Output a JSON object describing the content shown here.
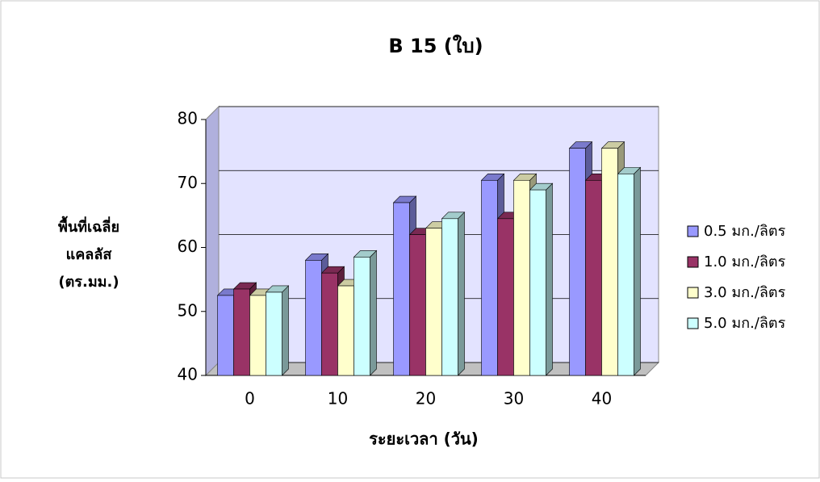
{
  "chart_data": {
    "type": "bar3d",
    "title": "B 15 (ใบ)",
    "ylabel": [
      "พื้นที่เฉลี่ย",
      "แคลลัส",
      "(ตร.มม.)"
    ],
    "xlabel": "ระยะเวลา (วัน)",
    "categories": [
      "0",
      "10",
      "20",
      "30",
      "40"
    ],
    "series": [
      {
        "name": "0.5 มก./ลิตร",
        "color": "#9999ff",
        "values": [
          52.5,
          58,
          67,
          70.5,
          75.5
        ]
      },
      {
        "name": "1.0 มก./ลิตร",
        "color": "#993366",
        "values": [
          53.5,
          56,
          62,
          64.5,
          70.5
        ]
      },
      {
        "name": "3.0 มก./ลิตร",
        "color": "#ffffcc",
        "values": [
          52.5,
          54,
          63,
          70.5,
          75.5
        ]
      },
      {
        "name": "5.0 มก./ลิตร",
        "color": "#ccffff",
        "values": [
          53,
          58.5,
          64.5,
          69,
          71.5
        ]
      }
    ],
    "ylim": [
      40,
      80
    ],
    "yticks": [
      40,
      50,
      60,
      70,
      80
    ],
    "grid": true
  }
}
